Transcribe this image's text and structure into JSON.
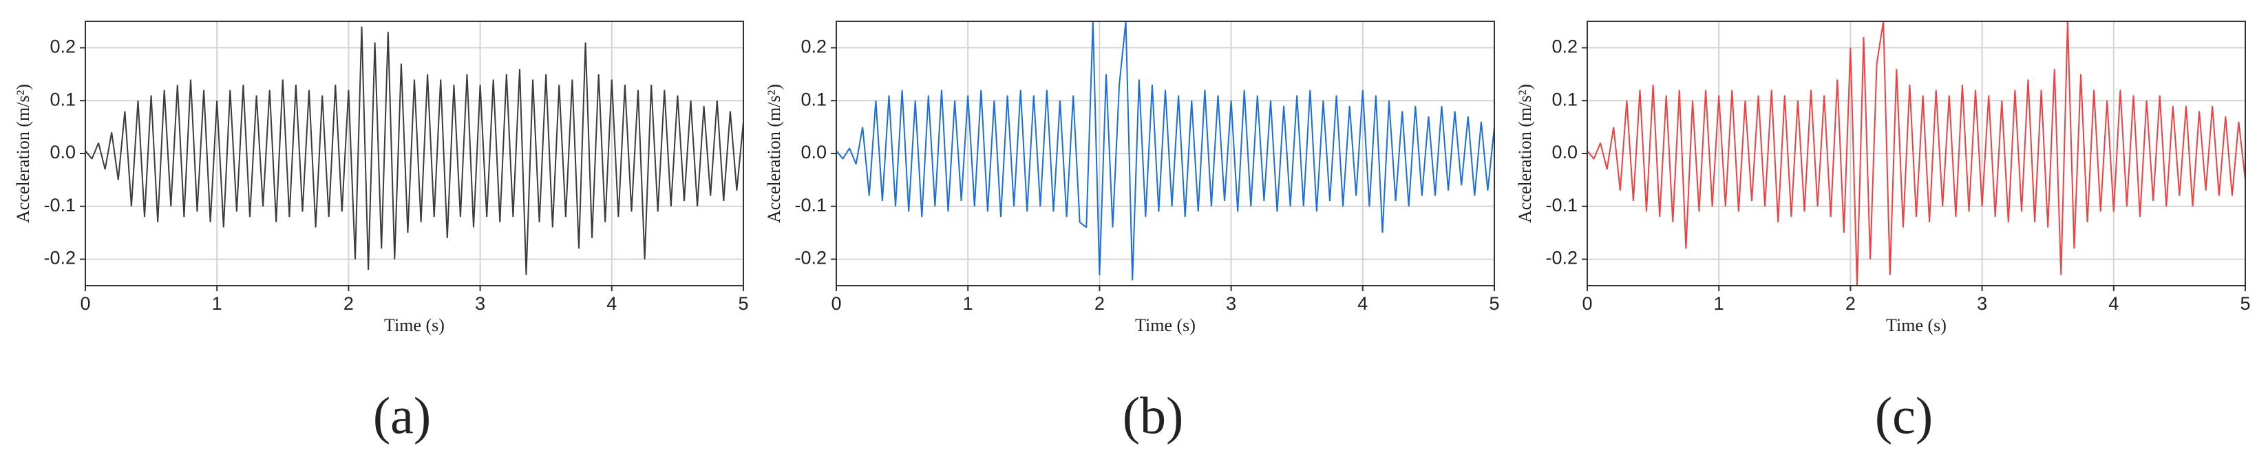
{
  "chart_data": [
    {
      "type": "line",
      "panel_label": "(a)",
      "xlabel": "Time (s)",
      "ylabel": "Acceleration (m/s²)",
      "color": "#3c3c3c",
      "grid": true,
      "xlim": [
        0,
        5
      ],
      "ylim": [
        -0.25,
        0.25
      ],
      "xticks": [
        0,
        1,
        2,
        3,
        4,
        5
      ],
      "yticks": [
        -0.2,
        -0.1,
        {
          "value": 0,
          "label": "0.0"
        },
        0.1,
        0.2
      ],
      "x": [
        0,
        0.05,
        0.1,
        0.15,
        0.2,
        0.25,
        0.3,
        0.35,
        0.4,
        0.45,
        0.5,
        0.55,
        0.6,
        0.65,
        0.7,
        0.75,
        0.8,
        0.85,
        0.9,
        0.95,
        1,
        1.05,
        1.1,
        1.15,
        1.2,
        1.25,
        1.3,
        1.35,
        1.4,
        1.45,
        1.5,
        1.55,
        1.6,
        1.65,
        1.7,
        1.75,
        1.8,
        1.85,
        1.9,
        1.95,
        2,
        2.05,
        2.1,
        2.15,
        2.2,
        2.25,
        2.3,
        2.35,
        2.4,
        2.45,
        2.5,
        2.55,
        2.6,
        2.65,
        2.7,
        2.75,
        2.8,
        2.85,
        2.9,
        2.95,
        3,
        3.05,
        3.1,
        3.15,
        3.2,
        3.25,
        3.3,
        3.35,
        3.4,
        3.45,
        3.5,
        3.55,
        3.6,
        3.65,
        3.7,
        3.75,
        3.8,
        3.85,
        3.9,
        3.95,
        4,
        4.05,
        4.1,
        4.15,
        4.2,
        4.25,
        4.3,
        4.35,
        4.4,
        4.45,
        4.5,
        4.55,
        4.6,
        4.65,
        4.7,
        4.75,
        4.8,
        4.85,
        4.9,
        4.95,
        5
      ],
      "values": [
        0.005,
        -0.01,
        0.02,
        -0.03,
        0.04,
        -0.05,
        0.08,
        -0.1,
        0.1,
        -0.12,
        0.11,
        -0.13,
        0.12,
        -0.1,
        0.13,
        -0.12,
        0.14,
        -0.11,
        0.12,
        -0.13,
        0.1,
        -0.14,
        0.12,
        -0.11,
        0.13,
        -0.12,
        0.11,
        -0.1,
        0.12,
        -0.13,
        0.14,
        -0.12,
        0.13,
        -0.11,
        0.12,
        -0.14,
        0.11,
        -0.12,
        0.13,
        -0.11,
        0.12,
        -0.2,
        0.24,
        -0.22,
        0.21,
        -0.18,
        0.23,
        -0.2,
        0.17,
        -0.15,
        0.14,
        -0.13,
        0.15,
        -0.12,
        0.14,
        -0.16,
        0.13,
        -0.12,
        0.15,
        -0.14,
        0.13,
        -0.12,
        0.14,
        -0.13,
        0.15,
        -0.12,
        0.16,
        -0.23,
        0.14,
        -0.13,
        0.15,
        -0.14,
        0.13,
        -0.12,
        0.14,
        -0.18,
        0.21,
        -0.16,
        0.15,
        -0.13,
        0.14,
        -0.12,
        0.13,
        -0.11,
        0.12,
        -0.2,
        0.13,
        -0.11,
        0.12,
        -0.1,
        0.11,
        -0.09,
        0.1,
        -0.1,
        0.09,
        -0.08,
        0.1,
        -0.09,
        0.08,
        -0.07,
        0.06
      ]
    },
    {
      "type": "line",
      "panel_label": "(b)",
      "xlabel": "Time (s)",
      "ylabel": "Acceleration (m/s²)",
      "color": "#1a6fdc",
      "grid": true,
      "xlim": [
        0,
        5
      ],
      "ylim": [
        -0.25,
        0.25
      ],
      "xticks": [
        0,
        1,
        2,
        3,
        4,
        5
      ],
      "yticks": [
        -0.2,
        -0.1,
        {
          "value": 0,
          "label": "0.0"
        },
        0.1,
        0.2
      ],
      "x": [
        0,
        0.05,
        0.1,
        0.15,
        0.2,
        0.25,
        0.3,
        0.35,
        0.4,
        0.45,
        0.5,
        0.55,
        0.6,
        0.65,
        0.7,
        0.75,
        0.8,
        0.85,
        0.9,
        0.95,
        1,
        1.05,
        1.1,
        1.15,
        1.2,
        1.25,
        1.3,
        1.35,
        1.4,
        1.45,
        1.5,
        1.55,
        1.6,
        1.65,
        1.7,
        1.75,
        1.8,
        1.85,
        1.9,
        1.95,
        2,
        2.05,
        2.1,
        2.15,
        2.2,
        2.25,
        2.3,
        2.35,
        2.4,
        2.45,
        2.5,
        2.55,
        2.6,
        2.65,
        2.7,
        2.75,
        2.8,
        2.85,
        2.9,
        2.95,
        3,
        3.05,
        3.1,
        3.15,
        3.2,
        3.25,
        3.3,
        3.35,
        3.4,
        3.45,
        3.5,
        3.55,
        3.6,
        3.65,
        3.7,
        3.75,
        3.8,
        3.85,
        3.9,
        3.95,
        4,
        4.05,
        4.1,
        4.15,
        4.2,
        4.25,
        4.3,
        4.35,
        4.4,
        4.45,
        4.5,
        4.55,
        4.6,
        4.65,
        4.7,
        4.75,
        4.8,
        4.85,
        4.9,
        4.95,
        5
      ],
      "values": [
        0.005,
        -0.01,
        0.01,
        -0.02,
        0.05,
        -0.08,
        0.1,
        -0.09,
        0.11,
        -0.1,
        0.12,
        -0.11,
        0.1,
        -0.12,
        0.11,
        -0.1,
        0.12,
        -0.11,
        0.1,
        -0.09,
        0.11,
        -0.1,
        0.12,
        -0.11,
        0.1,
        -0.12,
        0.11,
        -0.1,
        0.12,
        -0.11,
        0.11,
        -0.1,
        0.12,
        -0.11,
        0.1,
        -0.12,
        0.11,
        -0.13,
        -0.14,
        0.25,
        -0.23,
        0.15,
        -0.14,
        0.13,
        0.25,
        -0.24,
        0.14,
        -0.12,
        0.13,
        -0.11,
        0.12,
        -0.1,
        0.11,
        -0.12,
        0.1,
        -0.11,
        0.12,
        -0.1,
        0.11,
        -0.09,
        0.1,
        -0.11,
        0.12,
        -0.1,
        0.11,
        -0.09,
        0.1,
        -0.11,
        0.09,
        -0.1,
        0.11,
        -0.1,
        0.12,
        -0.11,
        0.1,
        -0.09,
        0.11,
        -0.1,
        0.09,
        -0.08,
        0.12,
        -0.1,
        0.11,
        -0.15,
        0.1,
        -0.09,
        0.08,
        -0.1,
        0.09,
        -0.08,
        0.07,
        -0.08,
        0.09,
        -0.07,
        0.08,
        -0.06,
        0.07,
        -0.08,
        0.06,
        -0.07,
        0.05
      ]
    },
    {
      "type": "line",
      "panel_label": "(c)",
      "xlabel": "Time (s)",
      "ylabel": "Acceleration (m/s²)",
      "color": "#f04040",
      "grid": true,
      "xlim": [
        0,
        5
      ],
      "ylim": [
        -0.25,
        0.25
      ],
      "xticks": [
        0,
        1,
        2,
        3,
        4,
        5
      ],
      "yticks": [
        -0.2,
        -0.1,
        {
          "value": 0,
          "label": "0.0"
        },
        0.1,
        0.2
      ],
      "x": [
        0,
        0.05,
        0.1,
        0.15,
        0.2,
        0.25,
        0.3,
        0.35,
        0.4,
        0.45,
        0.5,
        0.55,
        0.6,
        0.65,
        0.7,
        0.75,
        0.8,
        0.85,
        0.9,
        0.95,
        1,
        1.05,
        1.1,
        1.15,
        1.2,
        1.25,
        1.3,
        1.35,
        1.4,
        1.45,
        1.5,
        1.55,
        1.6,
        1.65,
        1.7,
        1.75,
        1.8,
        1.85,
        1.9,
        1.95,
        2,
        2.05,
        2.1,
        2.15,
        2.2,
        2.25,
        2.3,
        2.35,
        2.4,
        2.45,
        2.5,
        2.55,
        2.6,
        2.65,
        2.7,
        2.75,
        2.8,
        2.85,
        2.9,
        2.95,
        3,
        3.05,
        3.1,
        3.15,
        3.2,
        3.25,
        3.3,
        3.35,
        3.4,
        3.45,
        3.5,
        3.55,
        3.6,
        3.65,
        3.7,
        3.75,
        3.8,
        3.85,
        3.9,
        3.95,
        4,
        4.05,
        4.1,
        4.15,
        4.2,
        4.25,
        4.3,
        4.35,
        4.4,
        4.45,
        4.5,
        4.55,
        4.6,
        4.65,
        4.7,
        4.75,
        4.8,
        4.85,
        4.9,
        4.95,
        5
      ],
      "values": [
        0.005,
        -0.01,
        0.02,
        -0.03,
        0.05,
        -0.07,
        0.1,
        -0.09,
        0.12,
        -0.11,
        0.13,
        -0.12,
        0.11,
        -0.13,
        0.12,
        -0.18,
        0.1,
        -0.11,
        0.12,
        -0.1,
        0.11,
        -0.1,
        0.12,
        -0.11,
        0.1,
        -0.09,
        0.11,
        -0.1,
        0.12,
        -0.13,
        0.11,
        -0.12,
        0.1,
        -0.11,
        0.12,
        -0.1,
        0.11,
        -0.12,
        0.14,
        -0.15,
        0.2,
        -0.25,
        0.22,
        -0.2,
        0.17,
        0.25,
        -0.23,
        0.16,
        -0.14,
        0.13,
        -0.12,
        0.11,
        -0.13,
        0.12,
        -0.1,
        0.11,
        -0.12,
        0.13,
        -0.11,
        0.12,
        -0.1,
        0.11,
        -0.12,
        0.1,
        -0.13,
        0.12,
        -0.11,
        0.14,
        -0.13,
        0.12,
        -0.14,
        0.16,
        -0.23,
        0.25,
        -0.18,
        0.15,
        -0.13,
        0.12,
        -0.11,
        0.1,
        -0.11,
        0.12,
        -0.1,
        0.11,
        -0.12,
        0.1,
        -0.09,
        0.11,
        -0.1,
        0.09,
        -0.08,
        0.09,
        -0.1,
        0.08,
        -0.07,
        0.09,
        -0.08,
        0.07,
        -0.08,
        0.06,
        -0.05
      ]
    }
  ]
}
